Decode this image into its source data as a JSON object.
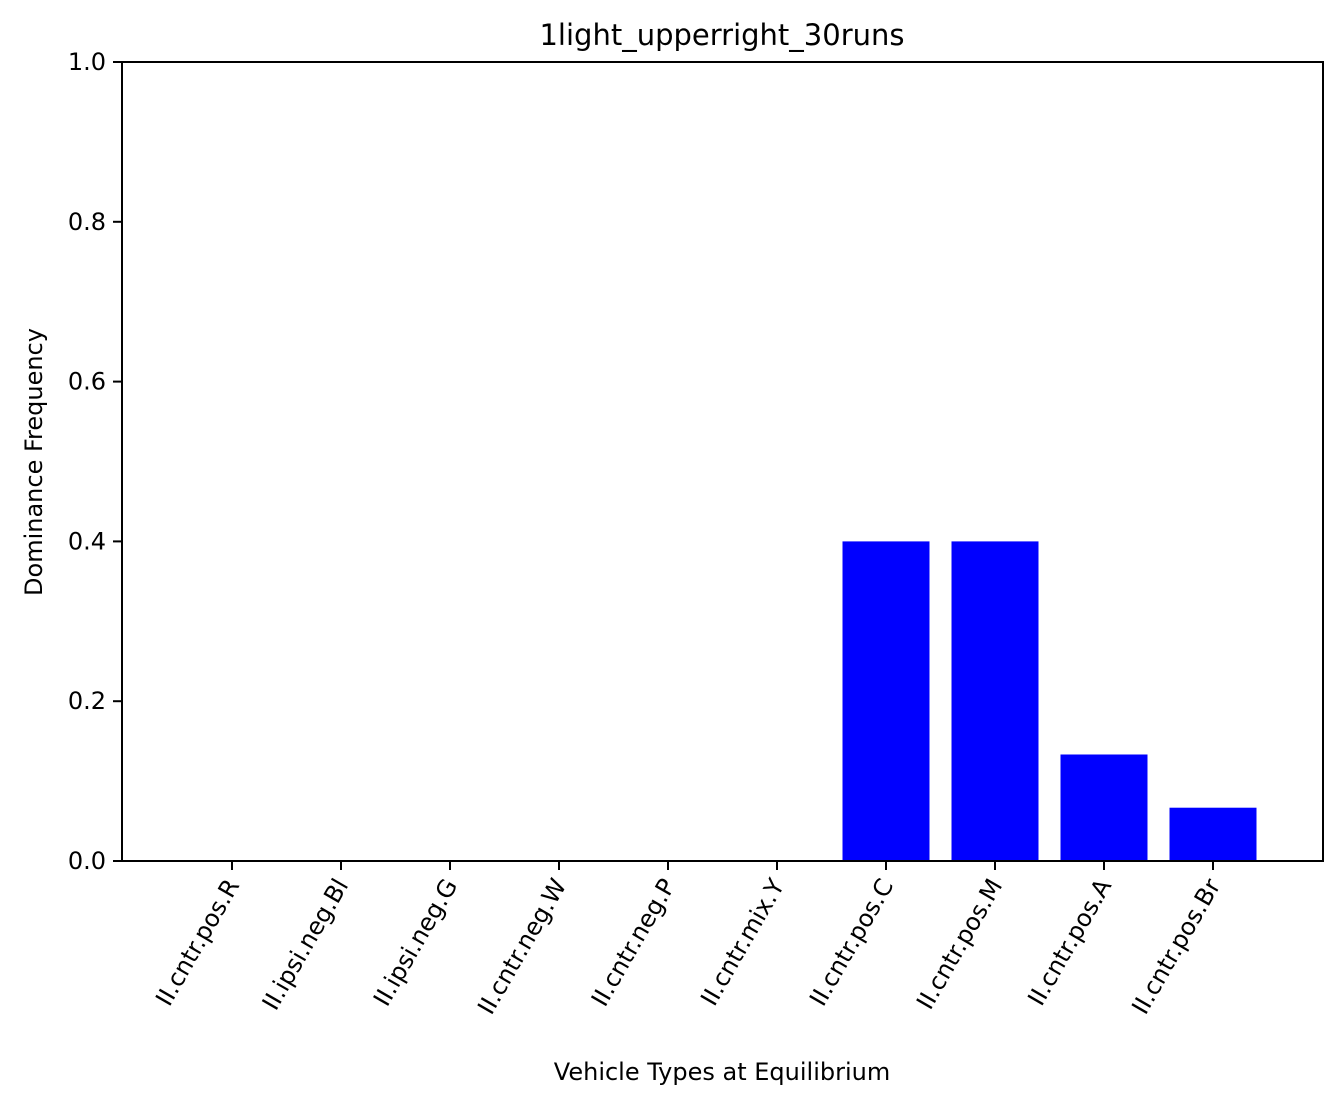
{
  "chart_data": {
    "type": "bar",
    "title": "1light_upperright_30runs",
    "xlabel": "Vehicle Types at Equilibrium",
    "ylabel": "Dominance Frequency",
    "categories": [
      "II.cntr.pos.R",
      "II.ipsi.neg.Bl",
      "II.ipsi.neg.G",
      "II.cntr.neg.W",
      "II.cntr.neg.P",
      "II.cntr.mix.Y",
      "II.cntr.pos.C",
      "II.cntr.pos.M",
      "II.cntr.pos.A",
      "II.cntr.pos.Br"
    ],
    "values": [
      0,
      0,
      0,
      0,
      0,
      0,
      0.4,
      0.4,
      0.1333,
      0.0667
    ],
    "ylim": [
      0,
      1.0
    ],
    "yticks": [
      "0.0",
      "0.2",
      "0.4",
      "0.6",
      "0.8",
      "1.0"
    ],
    "bar_color": "#0000ff",
    "grid": false,
    "legend": "none"
  }
}
